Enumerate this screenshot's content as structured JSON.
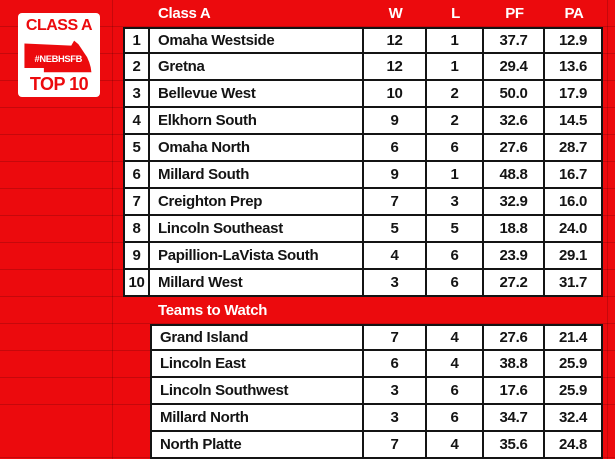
{
  "colors": {
    "red": "#ec0a0d",
    "ink": "#141414",
    "white": "#ffffff",
    "gridline": "rgba(0,0,0,0.16)"
  },
  "badge": {
    "line1": "CLASS A",
    "hashtag": "#NEBHSFB",
    "line2": "TOP 10",
    "state_icon": "nebraska-state-shape"
  },
  "chart_data": {
    "type": "table",
    "title": "Class A Top 10",
    "columns": [
      "",
      "Class A",
      "W",
      "L",
      "PF",
      "PA"
    ],
    "rows": [
      {
        "rank": "1",
        "team": "Omaha Westside",
        "w": "12",
        "l": "1",
        "pf": "37.7",
        "pa": "12.9"
      },
      {
        "rank": "2",
        "team": "Gretna",
        "w": "12",
        "l": "1",
        "pf": "29.4",
        "pa": "13.6"
      },
      {
        "rank": "3",
        "team": "Bellevue West",
        "w": "10",
        "l": "2",
        "pf": "50.0",
        "pa": "17.9"
      },
      {
        "rank": "4",
        "team": "Elkhorn South",
        "w": "9",
        "l": "2",
        "pf": "32.6",
        "pa": "14.5"
      },
      {
        "rank": "5",
        "team": "Omaha North",
        "w": "6",
        "l": "6",
        "pf": "27.6",
        "pa": "28.7"
      },
      {
        "rank": "6",
        "team": "Millard South",
        "w": "9",
        "l": "1",
        "pf": "48.8",
        "pa": "16.7"
      },
      {
        "rank": "7",
        "team": "Creighton Prep",
        "w": "7",
        "l": "3",
        "pf": "32.9",
        "pa": "16.0"
      },
      {
        "rank": "8",
        "team": "Lincoln Southeast",
        "w": "5",
        "l": "5",
        "pf": "18.8",
        "pa": "24.0"
      },
      {
        "rank": "9",
        "team": "Papillion-LaVista South",
        "w": "4",
        "l": "6",
        "pf": "23.9",
        "pa": "29.1"
      },
      {
        "rank": "10",
        "team": "Millard West",
        "w": "3",
        "l": "6",
        "pf": "27.2",
        "pa": "31.7"
      }
    ],
    "section2_label": "Teams to Watch",
    "section2_rows": [
      {
        "team": "Grand Island",
        "w": "7",
        "l": "4",
        "pf": "27.6",
        "pa": "21.4"
      },
      {
        "team": "Lincoln East",
        "w": "6",
        "l": "4",
        "pf": "38.8",
        "pa": "25.9"
      },
      {
        "team": "Lincoln Southwest",
        "w": "3",
        "l": "6",
        "pf": "17.6",
        "pa": "25.9"
      },
      {
        "team": "Millard North",
        "w": "3",
        "l": "6",
        "pf": "34.7",
        "pa": "32.4"
      },
      {
        "team": "North Platte",
        "w": "7",
        "l": "4",
        "pf": "35.6",
        "pa": "24.8"
      }
    ]
  }
}
